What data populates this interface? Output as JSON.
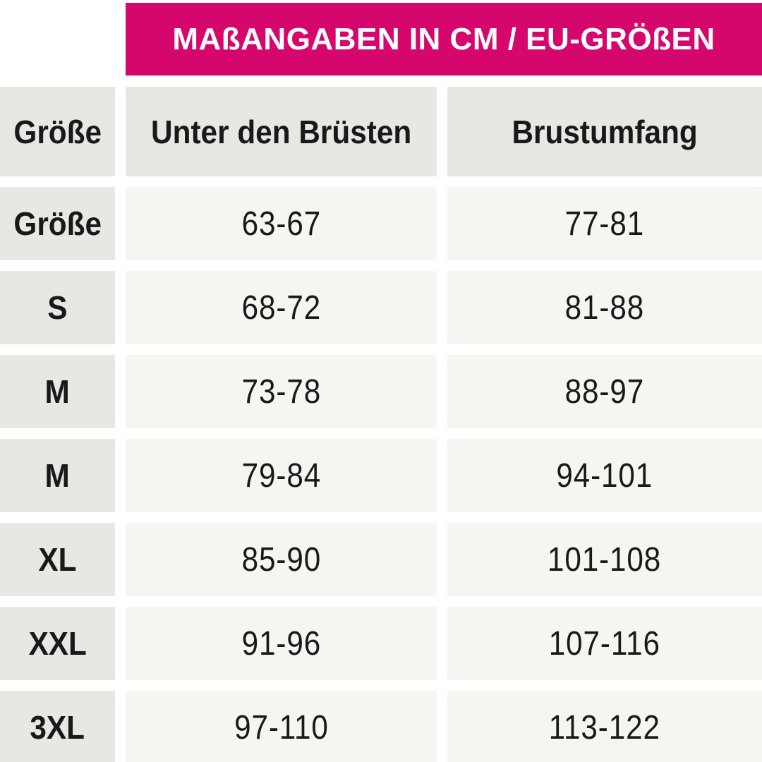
{
  "title": {
    "label": "MAßANGABEN IN CM / EU-GRÖßEN"
  },
  "table": {
    "headers": {
      "size": "Größe",
      "underbust": "Unter den Brüsten",
      "bust": "Brustumfang"
    },
    "rows": [
      {
        "size": "Größe",
        "underbust": "63-67",
        "bust": "77-81"
      },
      {
        "size": "S",
        "underbust": "68-72",
        "bust": "81-88"
      },
      {
        "size": "M",
        "underbust": "73-78",
        "bust": "88-97"
      },
      {
        "size": "M",
        "underbust": "79-84",
        "bust": "94-101"
      },
      {
        "size": "XL",
        "underbust": "85-90",
        "bust": "101-108"
      },
      {
        "size": "XXL",
        "underbust": "91-96",
        "bust": "107-116"
      },
      {
        "size": "3XL",
        "underbust": "97-110",
        "bust": "113-122"
      }
    ]
  },
  "colors": {
    "accent_pink": "#D5076C",
    "title_text": "#FFFFFF",
    "header_cell_bg": "#E9E7E4",
    "label_cell_bg": "#E9E7E4",
    "value_cell_bg": "#F7F5F2",
    "text": "#1B1918",
    "gutter": "#FFFFFF"
  }
}
